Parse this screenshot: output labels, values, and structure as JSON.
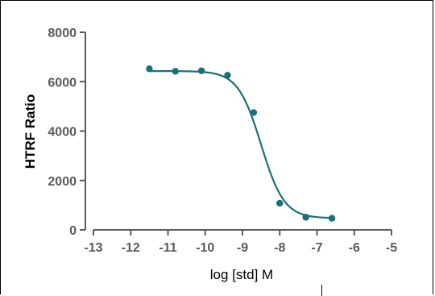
{
  "chart_data": {
    "type": "scatter",
    "xlabel": "log [std] M",
    "ylabel": "HTRF Ratio",
    "xlim": [
      -13,
      -5
    ],
    "ylim": [
      0,
      8000
    ],
    "x_ticks": [
      -13,
      -12,
      -11,
      -10,
      -9,
      -8,
      -7,
      -6,
      -5
    ],
    "y_ticks": [
      0,
      2000,
      4000,
      6000,
      8000
    ],
    "grid": false,
    "series": [
      {
        "points": [
          {
            "x": -11.5,
            "y": 6520
          },
          {
            "x": -10.8,
            "y": 6420
          },
          {
            "x": -10.1,
            "y": 6440
          },
          {
            "x": -9.4,
            "y": 6260
          },
          {
            "x": -8.7,
            "y": 4750
          },
          {
            "x": -8.0,
            "y": 1080
          },
          {
            "x": -7.3,
            "y": 510
          },
          {
            "x": -6.6,
            "y": 470
          }
        ],
        "fit": {
          "model": "four-parameter logistic",
          "top": 6430,
          "bottom": 470,
          "log_ic50": -8.5,
          "hill": 1.4,
          "x_range": [
            -11.5,
            -6.6
          ]
        }
      }
    ],
    "colors": {
      "series": "#1a6f7c",
      "axis": "#5a5a5a"
    }
  }
}
